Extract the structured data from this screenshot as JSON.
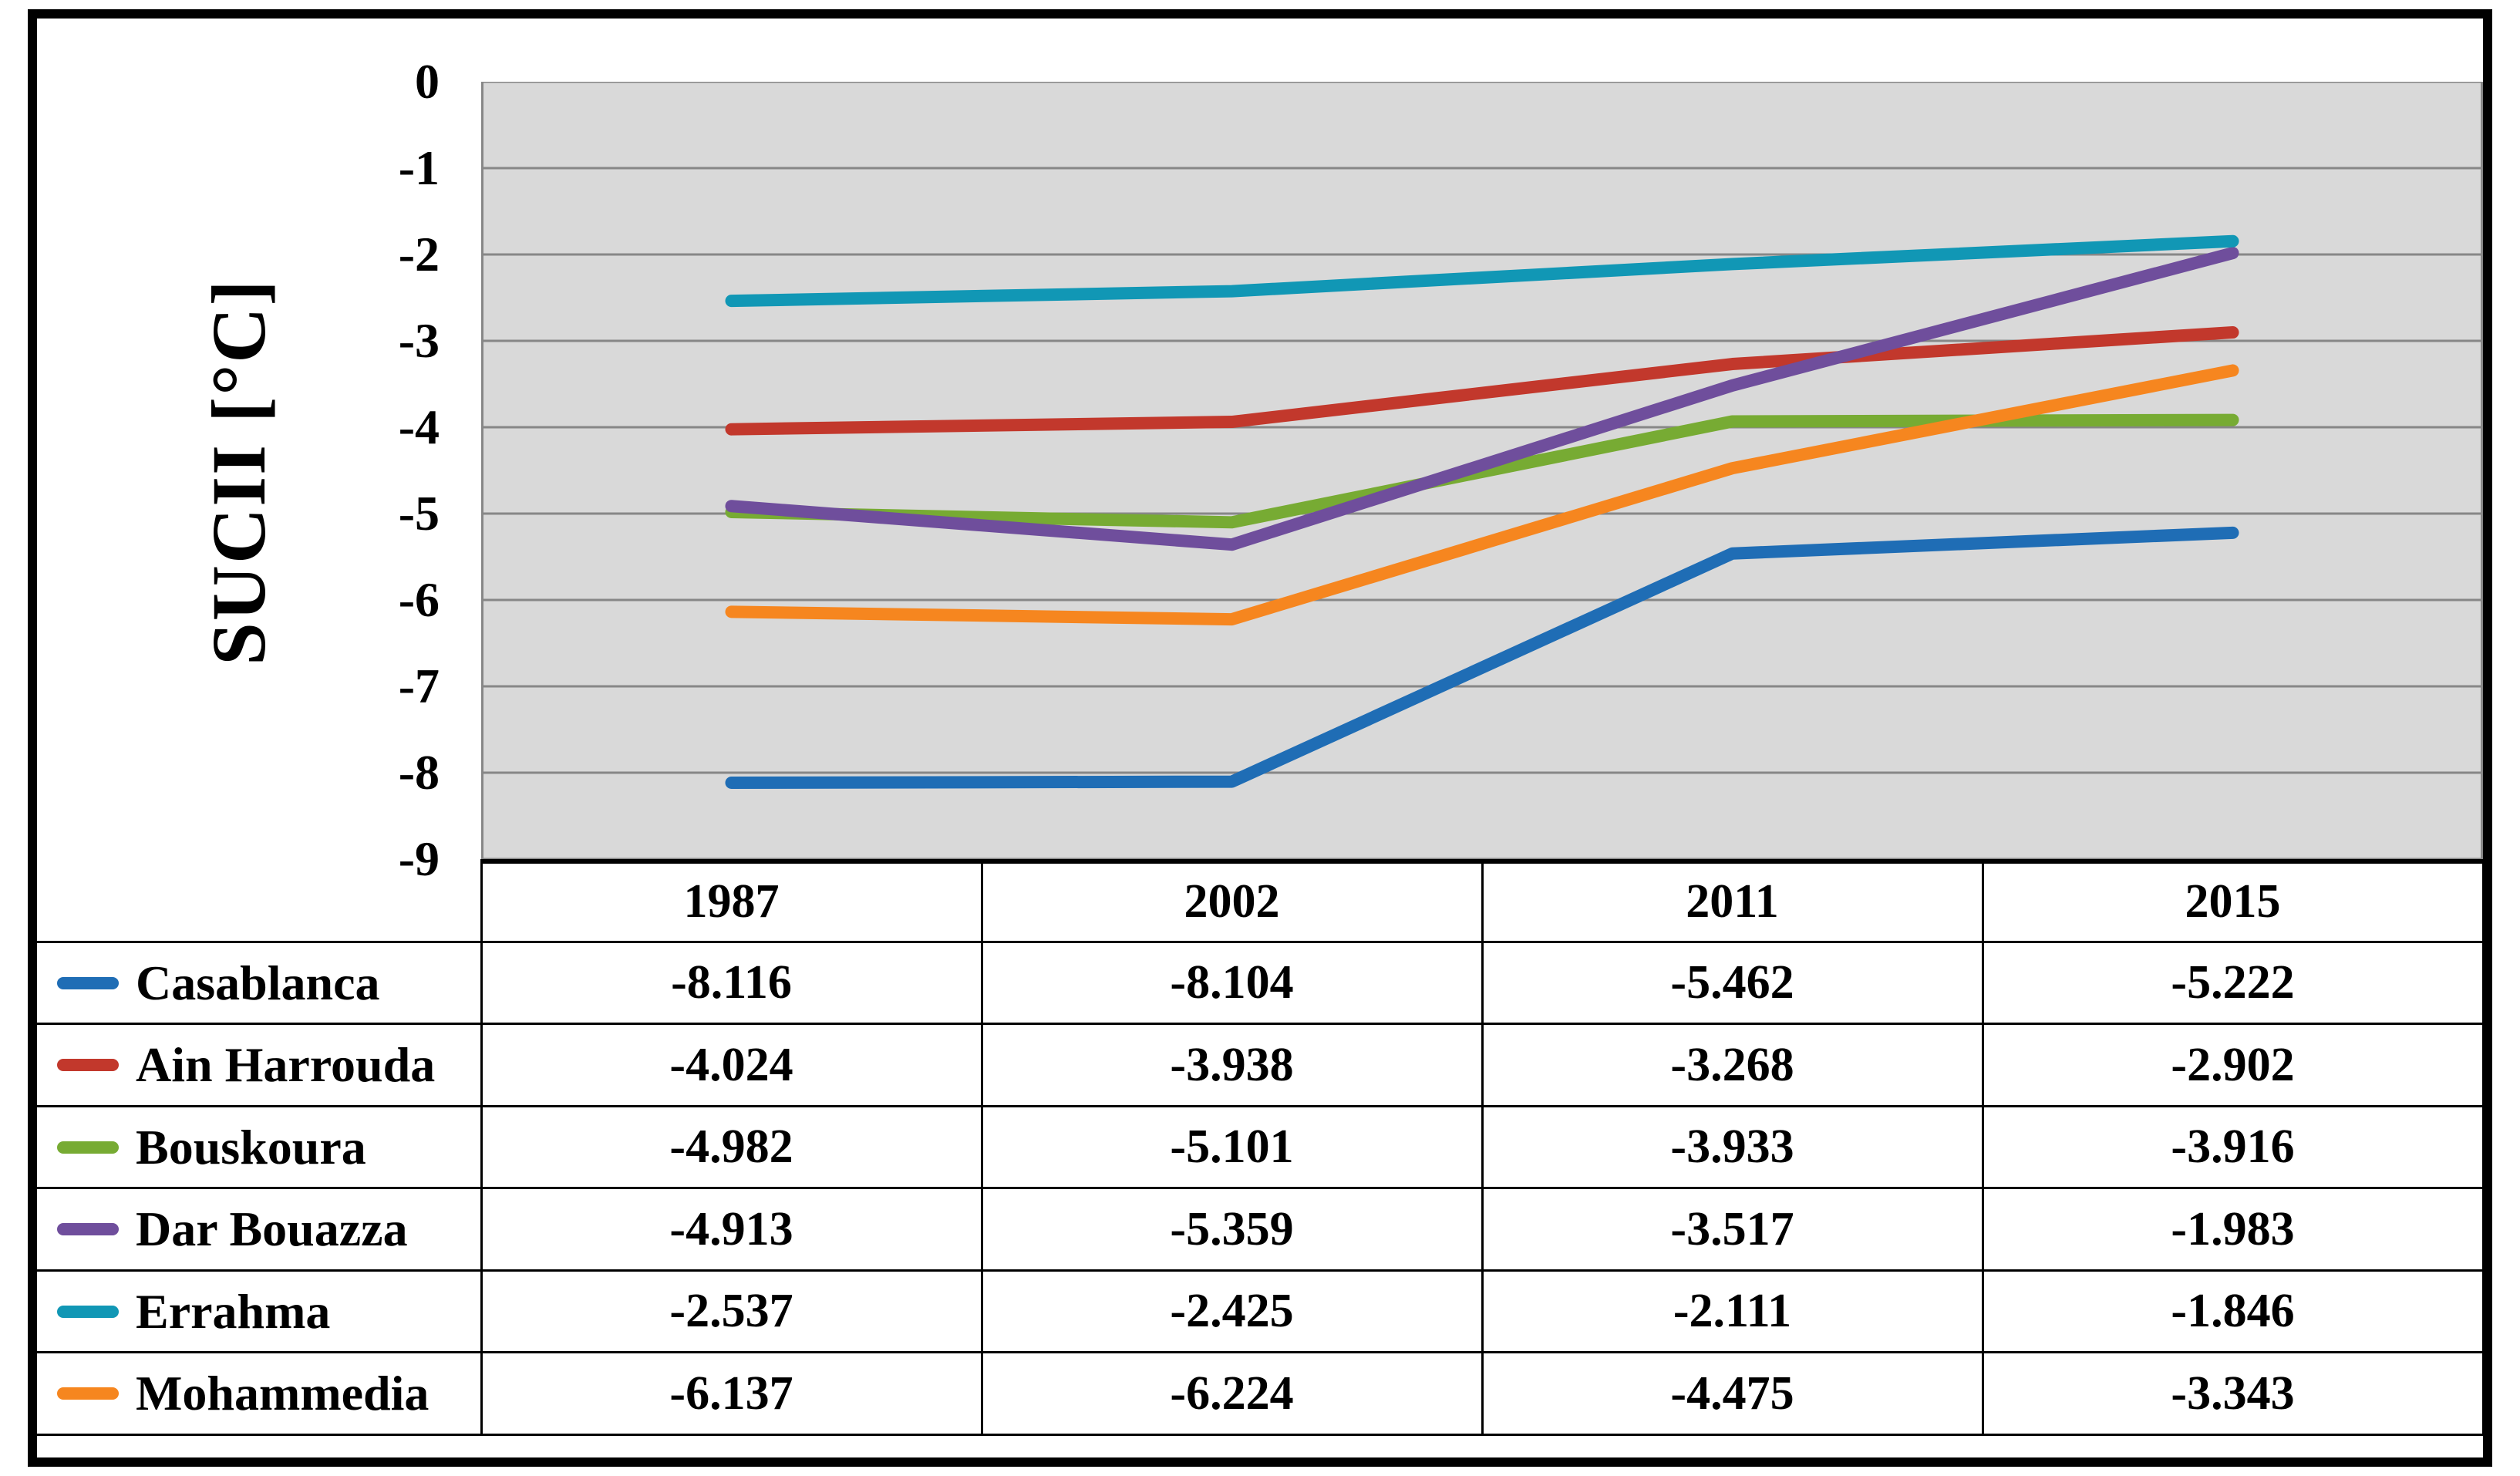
{
  "chart_data": {
    "type": "line",
    "title": "",
    "xlabel": "",
    "ylabel": "SUCII [°C]",
    "categories": [
      "1987",
      "2002",
      "2011",
      "2015"
    ],
    "series": [
      {
        "name": "Casablanca",
        "color": "#1F6DB5",
        "values": [
          -8.116,
          -8.104,
          -5.462,
          -5.222
        ]
      },
      {
        "name": "Ain Harrouda",
        "color": "#C2382C",
        "values": [
          -4.024,
          -3.938,
          -3.268,
          -2.902
        ]
      },
      {
        "name": "Bouskoura",
        "color": "#77AB33",
        "values": [
          -4.982,
          -5.101,
          -3.933,
          -3.916
        ]
      },
      {
        "name": "Dar Bouazza",
        "color": "#6F4E9C",
        "values": [
          -4.913,
          -5.359,
          -3.517,
          -1.983
        ]
      },
      {
        "name": "Errahma",
        "color": "#1197B5",
        "values": [
          -2.537,
          -2.425,
          -2.111,
          -1.846
        ]
      },
      {
        "name": "Mohammedia",
        "color": "#F6861F",
        "values": [
          -6.137,
          -6.224,
          -4.475,
          -3.343
        ]
      }
    ],
    "ylim": [
      -9,
      0
    ],
    "yticks": [
      0,
      -1,
      -2,
      -3,
      -4,
      -5,
      -6,
      -7,
      -8,
      -9
    ],
    "grid": true,
    "gridline_color": "#878787",
    "plot_bg": "#D9D9D9",
    "legend_position": "table-left-column",
    "value_decimals": 3,
    "data_table_shown": true
  }
}
